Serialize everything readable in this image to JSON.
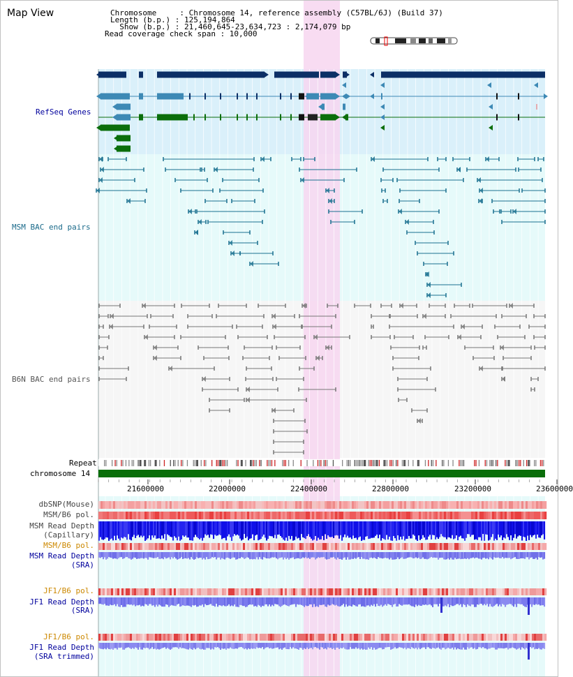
{
  "header": {
    "title": "Map View",
    "chromosome_line": "Chromosome     : Chromosome 14, reference assembly (C57BL/6J) (Build 37)",
    "length_line": "Length (b.p.) : 125,194,864",
    "show_line": "  Show (b.p.) : 21,460,645-23,634,723 : 2,174,079 bp",
    "read_cov_line": "Read coverage check span : 10,000"
  },
  "tracks": {
    "refseq_label": "RefSeq Genes",
    "msm_bac_label": "MSM BAC end pairs",
    "b6n_bac_label": "B6N BAC end pairs",
    "repeat_label": "Repeat",
    "chromosome_label": "chromosome 14",
    "dbsnp_label": "dbSNP(Mouse)",
    "msm_b6_pol_label_1": "MSM/B6 pol.",
    "msm_read_depth_cap_label_1": "MSM Read Depth",
    "msm_read_depth_cap_label_2": "(Capillary)",
    "msm_b6_pol_label_2": "MSM/B6 pol.",
    "msm_read_depth_sra_label_1": "MSM Read Depth",
    "msm_read_depth_sra_label_2": "(SRA)",
    "jf1_b6_pol_label_1": "JF1/B6 pol.",
    "jf1_read_depth_label_1": "JF1 Read Depth",
    "jf1_read_depth_label_2": "(SRA)",
    "jf1_b6_pol_label_2": "JF1/B6 pol.",
    "jf1_read_depth_trim_label_1": "JF1 Read Depth",
    "jf1_read_depth_trim_label_2": "(SRA trimmed)"
  },
  "axis": {
    "ticks": [
      "21600000",
      "22000000",
      "22400000",
      "22800000",
      "23200000",
      "23600000"
    ]
  },
  "colors": {
    "refseq_bg": "#daf0fa",
    "msm_bg": "#e6fafa",
    "b6n_bg": "#f6f6f6",
    "highlight": "#f7d6f0",
    "gene_dark": "#0c2f66",
    "gene_mid": "#3d89b5",
    "gene_green": "#0b6e0b",
    "msm_bac": "#1a7090",
    "b6n_bac": "#777777",
    "chromosome": "#0a6e0a",
    "label_blue": "#00009c",
    "label_orange": "#cc8800"
  }
}
